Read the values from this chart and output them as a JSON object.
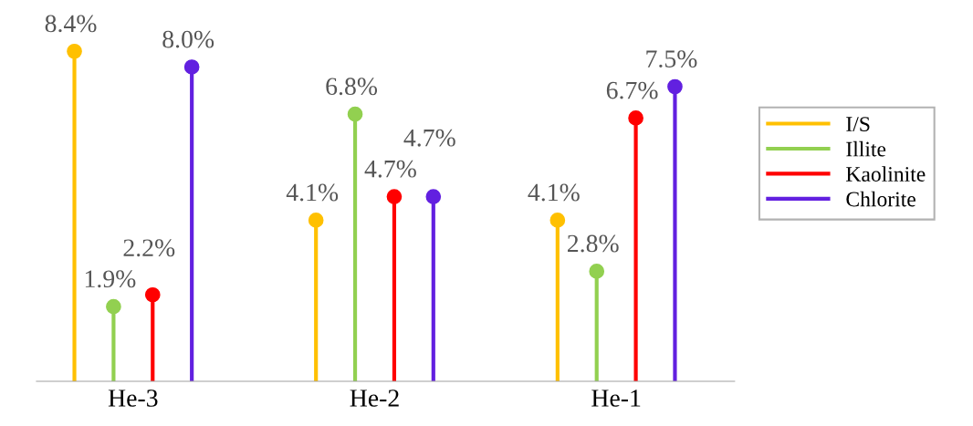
{
  "chart_data": {
    "type": "lollipop",
    "categories": [
      "He-3",
      "He-2",
      "He-1"
    ],
    "series": [
      {
        "name": "I/S",
        "color": "#ffc000",
        "values": [
          8.4,
          4.1,
          4.1
        ],
        "value_labels": [
          "8.4%",
          "4.1%",
          "4.1%"
        ]
      },
      {
        "name": "Illite",
        "color": "#92d050",
        "values": [
          1.9,
          6.8,
          2.8
        ],
        "value_labels": [
          "1.9%",
          "6.8%",
          "2.8%"
        ]
      },
      {
        "name": "Kaolinite",
        "color": "#ff0000",
        "values": [
          2.2,
          4.7,
          6.7
        ],
        "value_labels": [
          "2.2%",
          "4.7%",
          "6.7%"
        ]
      },
      {
        "name": "Chlorite",
        "color": "#6220e0",
        "values": [
          8.0,
          4.7,
          7.5
        ],
        "value_labels": [
          "8.0%",
          "4.7%",
          "7.5%"
        ]
      }
    ],
    "marker": "circle",
    "legend": "right",
    "grid": false
  }
}
